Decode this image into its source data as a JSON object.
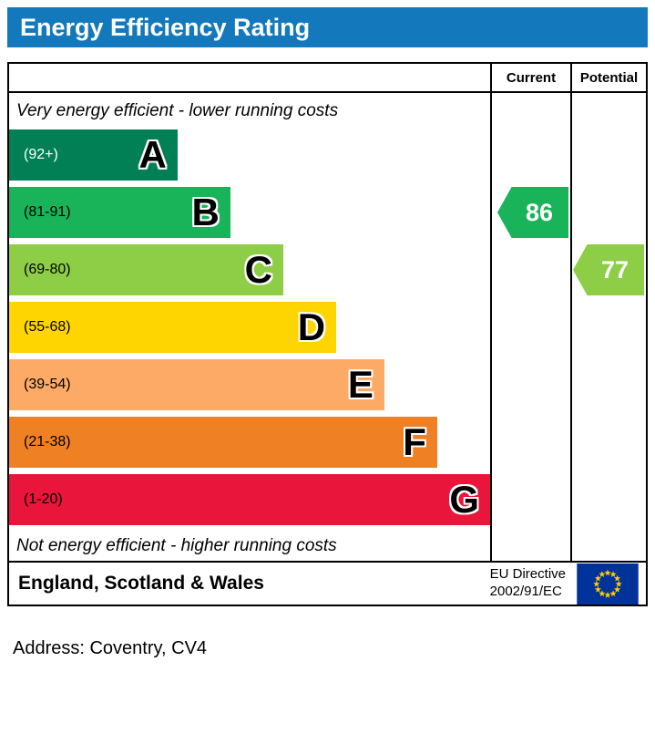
{
  "title": "Energy Efficiency Rating",
  "colors": {
    "title_bg": "#1479bc",
    "title_text": "#ffffff",
    "eu_flag_blue": "#003399",
    "eu_flag_star": "#ffcc00"
  },
  "chart_data": {
    "type": "bar",
    "title": "Energy Efficiency Rating",
    "top_label": "Very energy efficient - lower running costs",
    "bottom_label": "Not energy efficient - higher running costs",
    "columns": {
      "current": "Current",
      "potential": "Potential"
    },
    "bands": [
      {
        "letter": "A",
        "range": "(92+)",
        "color": "#008054",
        "width_pct": 35,
        "range_color": "#ffffff"
      },
      {
        "letter": "B",
        "range": "(81-91)",
        "color": "#19b459",
        "width_pct": 46,
        "range_color": "#000000"
      },
      {
        "letter": "C",
        "range": "(69-80)",
        "color": "#8dce46",
        "width_pct": 57,
        "range_color": "#000000"
      },
      {
        "letter": "D",
        "range": "(55-68)",
        "color": "#ffd500",
        "width_pct": 68,
        "range_color": "#000000"
      },
      {
        "letter": "E",
        "range": "(39-54)",
        "color": "#fcaa65",
        "width_pct": 78,
        "range_color": "#000000"
      },
      {
        "letter": "F",
        "range": "(21-38)",
        "color": "#ef8023",
        "width_pct": 89,
        "range_color": "#000000"
      },
      {
        "letter": "G",
        "range": "(1-20)",
        "color": "#e9153b",
        "width_pct": 100,
        "range_color": "#000000"
      }
    ],
    "current": {
      "value": 86,
      "band_index": 1,
      "color": "#19b459"
    },
    "potential": {
      "value": 77,
      "band_index": 2,
      "color": "#8dce46"
    }
  },
  "footer": {
    "region": "England, Scotland & Wales",
    "directive_line1": "EU Directive",
    "directive_line2": "2002/91/EC"
  },
  "address_line": "Address: Coventry, CV4"
}
